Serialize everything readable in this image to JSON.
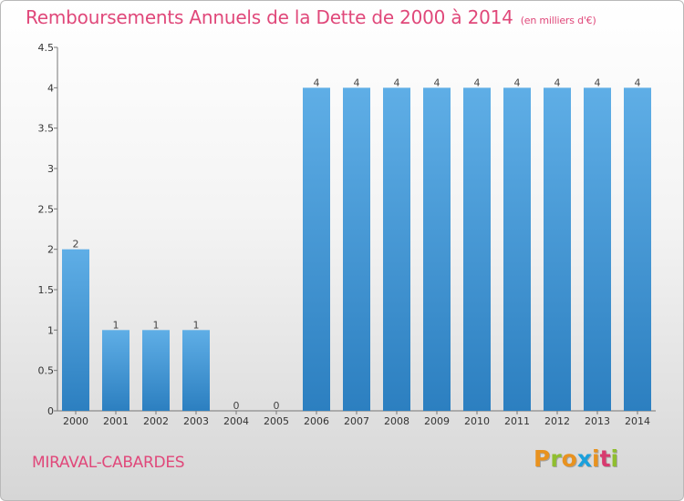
{
  "header": {
    "title": "Remboursements Annuels de la Dette de 2000 à 2014",
    "subtitle": "(en milliers d'€)"
  },
  "footer": {
    "commune": "MIRAVAL-CABARDES",
    "logo_text": "Proxiti"
  },
  "colors": {
    "title": "#e0487a",
    "bar_top": "#5faee6",
    "bar_bottom": "#2c7fc0",
    "logo_letters": [
      "#e8921f",
      "#8fbe2f",
      "#e8921f",
      "#1aa0dc",
      "#e8921f",
      "#d83a6f",
      "#8fbe2f"
    ]
  },
  "chart_data": {
    "type": "bar",
    "categories": [
      "2000",
      "2001",
      "2002",
      "2003",
      "2004",
      "2005",
      "2006",
      "2007",
      "2008",
      "2009",
      "2010",
      "2011",
      "2012",
      "2013",
      "2014"
    ],
    "values": [
      2,
      1,
      1,
      1,
      0,
      0,
      4,
      4,
      4,
      4,
      4,
      4,
      4,
      4,
      4
    ],
    "y_ticks": [
      "0",
      "0.5",
      "1",
      "1.5",
      "2",
      "2.5",
      "3",
      "3.5",
      "4",
      "4.5"
    ],
    "ylim": [
      0,
      4.5
    ],
    "grid": false,
    "legend": "none"
  }
}
